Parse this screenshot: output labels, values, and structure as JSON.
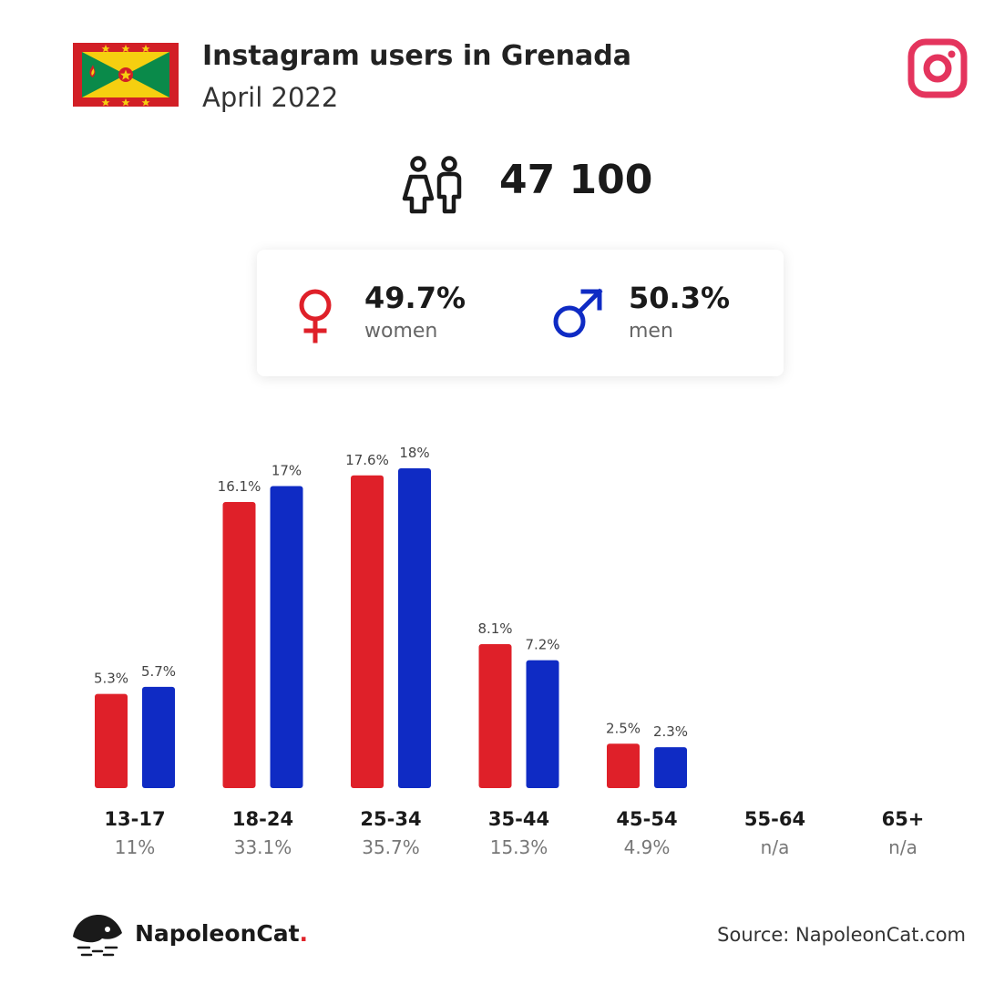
{
  "header": {
    "title": "Instagram users in Grenada",
    "subtitle": "April 2022"
  },
  "summary": {
    "total_users": "47 100",
    "women": {
      "percent": "49.7%",
      "label": "women"
    },
    "men": {
      "percent": "50.3%",
      "label": "men"
    }
  },
  "colors": {
    "women": "#df2029",
    "men": "#0f2bc4",
    "instagram": "#e4345d"
  },
  "icons": {
    "flag": "grenada-flag-icon",
    "platform": "instagram-icon",
    "users": "people-icon",
    "female": "female-symbol-icon",
    "male": "male-symbol-icon",
    "brand": "napoleoncat-logo-icon"
  },
  "chart_data": {
    "type": "bar",
    "categories": [
      "13-17",
      "18-24",
      "25-34",
      "35-44",
      "45-54",
      "55-64",
      "65+"
    ],
    "totals": [
      "11%",
      "33.1%",
      "35.7%",
      "15.3%",
      "4.9%",
      "n/a",
      "n/a"
    ],
    "series": [
      {
        "values": [
          5.3,
          16.1,
          17.6,
          8.1,
          2.5,
          null,
          null
        ],
        "labels": [
          "5.3%",
          "16.1%",
          "17.6%",
          "8.1%",
          "2.5%",
          "",
          ""
        ]
      },
      {
        "values": [
          5.7,
          17,
          18,
          7.2,
          2.3,
          null,
          null
        ],
        "labels": [
          "5.7%",
          "17%",
          "18%",
          "7.2%",
          "2.3%",
          "",
          ""
        ]
      }
    ],
    "ylim": [
      0,
      18
    ]
  },
  "footer": {
    "brand_name": "NapoleonCat",
    "brand_dot": ".",
    "source": "Source: NapoleonCat.com"
  }
}
